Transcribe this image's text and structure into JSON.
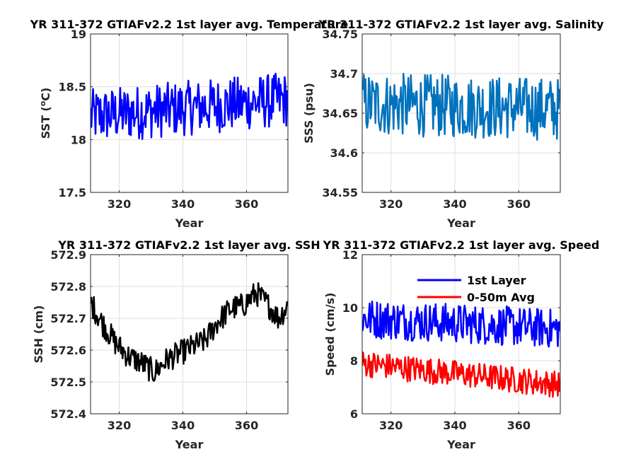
{
  "chart_data": [
    {
      "type": "line",
      "title": "YR 311-372 GTIAFv2.2 1st layer avg. Temperature",
      "xlabel": "Year",
      "ylabel": "SST (",
      "ylabel_unit": "C)",
      "ylabel_sup": "o",
      "xlim": [
        311,
        373
      ],
      "ylim": [
        17.5,
        19
      ],
      "xticks": [
        "320",
        "340",
        "360"
      ],
      "yticks": [
        "17.5",
        "18",
        "18.5",
        "19"
      ],
      "grid": true,
      "series": [
        {
          "color": "#0000ff",
          "mean_start": 18.22,
          "mean_end": 18.38,
          "amplitude": 0.26
        }
      ]
    },
    {
      "type": "line",
      "title": "YR 311-372 GTIAFv2.2 1st layer avg. Salinity",
      "xlabel": "Year",
      "ylabel": "SSS (psu)",
      "xlim": [
        311,
        373
      ],
      "ylim": [
        34.55,
        34.75
      ],
      "xticks": [
        "320",
        "340",
        "360"
      ],
      "yticks": [
        "34.55",
        "34.6",
        "34.65",
        "34.7",
        "34.75"
      ],
      "grid": true,
      "series": [
        {
          "color": "#0072bd",
          "mean_start": 34.662,
          "mean_end": 34.655,
          "amplitude": 0.04
        }
      ]
    },
    {
      "type": "line",
      "title": "YR 311-372 GTIAFv2.2 1st layer avg. SSH",
      "xlabel": "Year",
      "ylabel": "SSH (cm)",
      "xlim": [
        311,
        373
      ],
      "ylim": [
        572.4,
        572.9
      ],
      "xticks": [
        "320",
        "340",
        "360"
      ],
      "yticks": [
        "572.4",
        "572.5",
        "572.6",
        "572.7",
        "572.8",
        "572.9"
      ],
      "grid": true,
      "series": [
        {
          "color": "#000000",
          "points": [
            [
              311,
              572.75
            ],
            [
              315,
              572.68
            ],
            [
              319,
              572.62
            ],
            [
              323,
              572.58
            ],
            [
              327,
              572.56
            ],
            [
              331,
              572.53
            ],
            [
              335,
              572.57
            ],
            [
              339,
              572.59
            ],
            [
              343,
              572.61
            ],
            [
              347,
              572.63
            ],
            [
              351,
              572.69
            ],
            [
              355,
              572.73
            ],
            [
              359,
              572.74
            ],
            [
              363,
              572.78
            ],
            [
              367,
              572.74
            ],
            [
              370,
              572.7
            ],
            [
              373,
              572.74
            ]
          ],
          "amplitude": 0.04
        }
      ]
    },
    {
      "type": "line",
      "title": "YR 311-372 GTIAFv2.2 1st layer avg. Speed",
      "xlabel": "Year",
      "ylabel": "Speed (cm/s)",
      "xlim": [
        311,
        373
      ],
      "ylim": [
        6,
        12
      ],
      "xticks": [
        "320",
        "340",
        "360"
      ],
      "yticks": [
        "6",
        "8",
        "10",
        "12"
      ],
      "grid": true,
      "legend": "top-center",
      "series": [
        {
          "name": "1st Layer",
          "color": "#0000ff",
          "mean_start": 9.6,
          "mean_end": 9.2,
          "amplitude": 0.75
        },
        {
          "name": "0-50m Avg",
          "color": "#ff0000",
          "mean_start": 7.9,
          "mean_end": 7.1,
          "amplitude": 0.5
        }
      ]
    }
  ]
}
